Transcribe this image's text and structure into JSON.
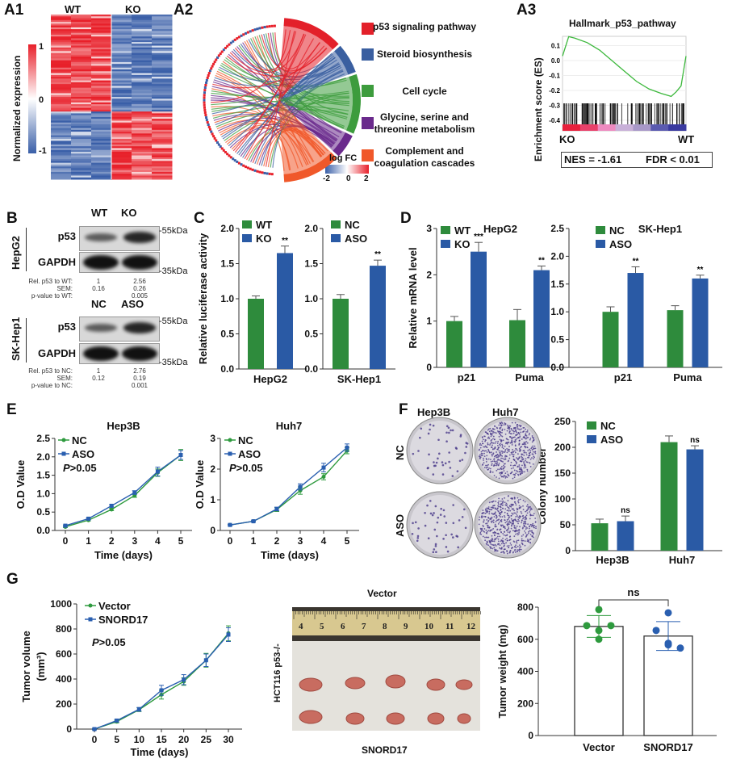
{
  "panel_labels": {
    "a1": "A1",
    "a2": "A2",
    "a3": "A3",
    "b": "B",
    "c": "C",
    "d": "D",
    "e": "E",
    "f": "F",
    "g": "G"
  },
  "a1": {
    "groups": [
      "WT",
      "KO"
    ],
    "colorbar_label": "Normalized expression",
    "colorbar_ticks": [
      "1",
      "0",
      "-1"
    ],
    "colors": {
      "high": "#e8202a",
      "mid": "#ffffff",
      "low": "#3a5fa8"
    }
  },
  "a2": {
    "pathways": [
      {
        "label": "p53 signaling pathway",
        "color": "#e3202a"
      },
      {
        "label": "Steroid biosynthesis",
        "color": "#3a5fa0"
      },
      {
        "label": "Cell cycle",
        "color": "#3d9c3d"
      },
      {
        "label": "Glycine, serine and threonine metabolism",
        "color": "#6a2a8c"
      },
      {
        "label": "Complement and coagulation cascades",
        "color": "#f0582a"
      }
    ],
    "logfc_label": "log FC",
    "logfc_ticks": [
      "-2",
      "0",
      "2"
    ]
  },
  "a3": {
    "title": "Hallmark_p53_pathway",
    "left": "KO",
    "right": "WT",
    "nes": "NES = -1.61",
    "fdr": "FDR < 0.01"
  },
  "b": {
    "blots": [
      {
        "cell": "HepG2",
        "lanes": [
          "WT",
          "KO"
        ],
        "rows": [
          "p53",
          "GAPDH"
        ],
        "markers": [
          "-55kDa",
          "-35kDa"
        ],
        "intensity": [
          0.45,
          0.9
        ],
        "quant": {
          "labels": [
            "Rel. p53 to WT:",
            "SEM:",
            "p-value to WT:"
          ],
          "lane1": [
            "1",
            "0.16",
            ""
          ],
          "lane2": [
            "2.56",
            "0.26",
            "0.005"
          ]
        }
      },
      {
        "cell": "SK-Hep1",
        "lanes": [
          "NC",
          "ASO"
        ],
        "rows": [
          "p53",
          "GAPDH"
        ],
        "markers": [
          "-55kDa",
          "-35kDa"
        ],
        "intensity": [
          0.45,
          0.9
        ],
        "quant": {
          "labels": [
            "Rel. p53 to NC:",
            "SEM:",
            "p-value to NC:"
          ],
          "lane1": [
            "1",
            "0.12",
            ""
          ],
          "lane2": [
            "2.76",
            "0.19",
            "0.001"
          ]
        }
      }
    ]
  },
  "f": {
    "columns": [
      "Hep3B",
      "Huh7"
    ],
    "rows": [
      "NC",
      "ASO"
    ]
  },
  "g": {
    "photo_title": "Vector",
    "photo_bottom": "SNORD17",
    "photo_side": "HCT116 p53-/-",
    "ruler": [
      "4",
      "5",
      "6",
      "7",
      "8",
      "9",
      "10",
      "11",
      "12"
    ]
  },
  "chart_data": [
    {
      "id": "chart-c-hepg2",
      "type": "bar",
      "ylabel": "Relative luciferase activity",
      "ylim": [
        0,
        2
      ],
      "yticks": [
        "0.0",
        "0.5",
        "1.0",
        "1.5",
        "2.0"
      ],
      "categories": [
        "HepG2"
      ],
      "series": [
        {
          "name": "WT",
          "color": "#2e8b3c",
          "values": [
            1.0
          ],
          "errors": [
            0.04
          ],
          "sig": [
            ""
          ]
        },
        {
          "name": "KO",
          "color": "#2a5aa5",
          "values": [
            1.65
          ],
          "errors": [
            0.1
          ],
          "sig": [
            "**"
          ]
        }
      ]
    },
    {
      "id": "chart-c-skhep1",
      "type": "bar",
      "ylim": [
        0,
        2
      ],
      "yticks": [
        "0.0",
        "0.5",
        "1.0",
        "1.5",
        "2.0"
      ],
      "categories": [
        "SK-Hep1"
      ],
      "series": [
        {
          "name": "NC",
          "color": "#2e8b3c",
          "values": [
            1.0
          ],
          "errors": [
            0.06
          ],
          "sig": [
            ""
          ]
        },
        {
          "name": "ASO",
          "color": "#2a5aa5",
          "values": [
            1.47
          ],
          "errors": [
            0.08
          ],
          "sig": [
            "**"
          ]
        }
      ]
    },
    {
      "id": "chart-d-hepg2",
      "type": "bar",
      "title": "HepG2",
      "ylabel": "Relative mRNA  level",
      "ylim": [
        0,
        3
      ],
      "yticks": [
        "0",
        "1",
        "2",
        "3"
      ],
      "categories": [
        "p21",
        "Puma"
      ],
      "series": [
        {
          "name": "WT",
          "color": "#2e8b3c",
          "values": [
            1.0,
            1.02
          ],
          "errors": [
            0.1,
            0.23
          ],
          "sig": [
            "",
            ""
          ]
        },
        {
          "name": "KO",
          "color": "#2a5aa5",
          "values": [
            2.5,
            2.1
          ],
          "errors": [
            0.2,
            0.09
          ],
          "sig": [
            "***",
            "**"
          ]
        }
      ]
    },
    {
      "id": "chart-d-skhep1",
      "type": "bar",
      "title": "SK-Hep1",
      "ylim": [
        0,
        2.5
      ],
      "yticks": [
        "0.0",
        "0.5",
        "1.0",
        "1.5",
        "2.0",
        "2.5"
      ],
      "categories": [
        "p21",
        "Puma"
      ],
      "series": [
        {
          "name": "NC",
          "color": "#2e8b3c",
          "values": [
            1.0,
            1.03
          ],
          "errors": [
            0.09,
            0.08
          ],
          "sig": [
            "",
            ""
          ]
        },
        {
          "name": "ASO",
          "color": "#2a5aa5",
          "values": [
            1.7,
            1.6
          ],
          "errors": [
            0.11,
            0.06
          ],
          "sig": [
            "**",
            "**"
          ]
        }
      ]
    },
    {
      "id": "chart-e-hep3b",
      "type": "line",
      "title": "Hep3B",
      "xlabel": "Time (days)",
      "ylabel": "O.D Value",
      "annotation": "P>0.05",
      "xlim": [
        0,
        5
      ],
      "xticks": [
        "0",
        "1",
        "2",
        "3",
        "4",
        "5"
      ],
      "ylim": [
        0,
        2.5
      ],
      "yticks": [
        "0.0",
        "0.5",
        "1.0",
        "1.5",
        "2.0",
        "2.5"
      ],
      "x": [
        0,
        1,
        2,
        3,
        4,
        5
      ],
      "series": [
        {
          "name": "NC",
          "color": "#2e9a3e",
          "marker": "circle",
          "values": [
            0.1,
            0.28,
            0.57,
            0.95,
            1.57,
            2.05
          ],
          "errors": [
            0.02,
            0.02,
            0.03,
            0.05,
            0.1,
            0.15
          ]
        },
        {
          "name": "ASO",
          "color": "#2a5fb0",
          "marker": "square",
          "values": [
            0.13,
            0.32,
            0.67,
            1.03,
            1.6,
            2.05
          ],
          "errors": [
            0.02,
            0.02,
            0.03,
            0.05,
            0.12,
            0.12
          ]
        }
      ]
    },
    {
      "id": "chart-e-huh7",
      "type": "line",
      "title": "Huh7",
      "xlabel": "Time (days)",
      "ylabel": "O.D Value",
      "annotation": "P>0.05",
      "xlim": [
        0,
        5
      ],
      "xticks": [
        "0",
        "1",
        "2",
        "3",
        "4",
        "5"
      ],
      "ylim": [
        0,
        3
      ],
      "yticks": [
        "0",
        "1",
        "2",
        "3"
      ],
      "x": [
        0,
        1,
        2,
        3,
        4,
        5
      ],
      "series": [
        {
          "name": "NC",
          "color": "#2e9a3e",
          "marker": "circle",
          "values": [
            0.18,
            0.3,
            0.68,
            1.3,
            1.75,
            2.6
          ],
          "errors": [
            0.02,
            0.02,
            0.06,
            0.12,
            0.1,
            0.1
          ]
        },
        {
          "name": "ASO",
          "color": "#2a5fb0",
          "marker": "square",
          "values": [
            0.18,
            0.3,
            0.7,
            1.42,
            2.05,
            2.7
          ],
          "errors": [
            0.02,
            0.02,
            0.06,
            0.1,
            0.14,
            0.12
          ]
        }
      ]
    },
    {
      "id": "chart-f-colony",
      "type": "bar",
      "ylabel": "Colony number",
      "ylim": [
        0,
        250
      ],
      "yticks": [
        "0",
        "50",
        "100",
        "150",
        "200",
        "250"
      ],
      "categories": [
        "Hep3B",
        "Huh7"
      ],
      "series": [
        {
          "name": "NC",
          "color": "#2e8b3c",
          "values": [
            53,
            210
          ],
          "errors": [
            8,
            12
          ],
          "sig": [
            "",
            ""
          ]
        },
        {
          "name": "ASO",
          "color": "#2a5aa5",
          "values": [
            57,
            196
          ],
          "errors": [
            10,
            7
          ],
          "sig": [
            "ns",
            "ns"
          ]
        }
      ]
    },
    {
      "id": "chart-g-volume",
      "type": "line",
      "xlabel": "Time (days)",
      "ylabel": "Tumor  volume",
      "ylabel2": "(mm³)",
      "annotation": "P>0.05",
      "xlim": [
        0,
        30
      ],
      "xticks": [
        "0",
        "5",
        "10",
        "15",
        "20",
        "25",
        "30"
      ],
      "ylim": [
        0,
        1000
      ],
      "yticks": [
        "0",
        "200",
        "400",
        "600",
        "800",
        "1000"
      ],
      "x": [
        0,
        5,
        10,
        15,
        20,
        25,
        30
      ],
      "series": [
        {
          "name": "Vector",
          "color": "#2e9a3e",
          "marker": "circle",
          "values": [
            0,
            60,
            155,
            275,
            380,
            550,
            765
          ],
          "errors": [
            5,
            10,
            15,
            35,
            30,
            55,
            60
          ]
        },
        {
          "name": "SNORD17",
          "color": "#2a5fb0",
          "marker": "square",
          "values": [
            0,
            68,
            158,
            310,
            395,
            550,
            755
          ],
          "errors": [
            5,
            10,
            15,
            40,
            40,
            50,
            55
          ]
        }
      ]
    },
    {
      "id": "chart-g-weight",
      "type": "bar",
      "ylabel": "Tumor  weight (mg)",
      "ylim": [
        0,
        800
      ],
      "yticks": [
        "0",
        "200",
        "400",
        "600",
        "800"
      ],
      "categories": [
        "Vector",
        "SNORD17"
      ],
      "comparison": "ns",
      "series": [
        {
          "color": "#ffffff",
          "values": [
            680,
            620
          ],
          "errors": [
            68,
            90
          ],
          "sig": [
            "",
            ""
          ],
          "point_colors": [
            "#2e9a3e",
            "#2a5fb0"
          ],
          "points": [
            [
              785,
              685,
              655,
              685,
              600
            ],
            [
              765,
              655,
              575,
              545,
              565
            ]
          ]
        }
      ]
    }
  ]
}
